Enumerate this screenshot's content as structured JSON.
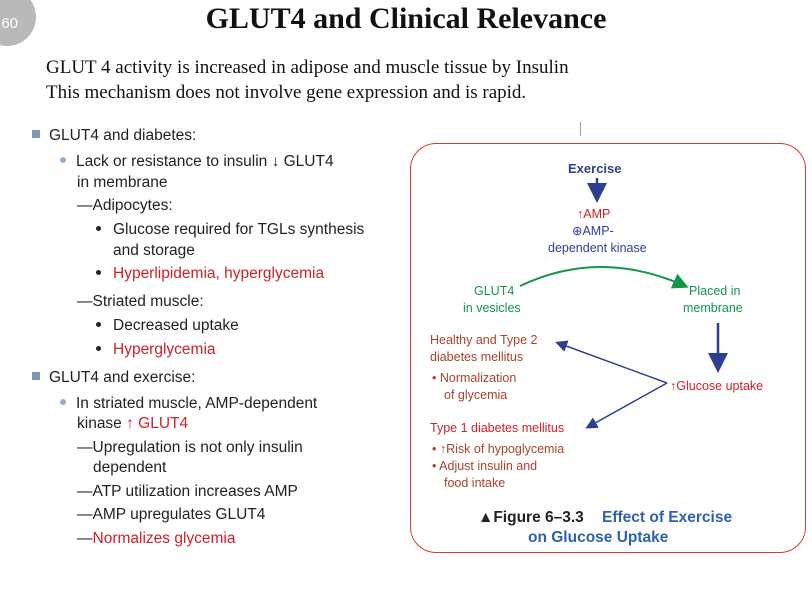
{
  "slide_number": "60",
  "title": "GLUT4 and Clinical Relevance",
  "intro": [
    "GLUT 4 activity is increased in adipose and muscle tissue by Insulin",
    "This mechanism does not involve gene expression and is rapid."
  ],
  "bullets": {
    "diabetes_heading": "GLUT4 and diabetes:",
    "lack_line1": "Lack or resistance to insulin ↓ GLUT4",
    "lack_line2": "in membrane",
    "adipocytes": "—Adipocytes:",
    "glucose_line1": "Glucose required for TGLs synthesis",
    "glucose_line2": "and storage",
    "hyperlipidemia": "Hyperlipidemia, hyperglycemia",
    "striated": "—Striated muscle:",
    "decreased": "Decreased uptake",
    "hyperglycemia": "Hyperglycemia",
    "exercise_heading": "GLUT4 and exercise:",
    "ampk_line1": "In striated muscle, AMP-dependent",
    "ampk_line2_a": "kinase",
    "ampk_line2_b": "↑ GLUT4",
    "upreg_line1": "—Upregulation is not only insulin",
    "upreg_line2": "dependent",
    "atp": "—ATP utilization increases AMP",
    "amp": "—AMP upregulates GLUT4",
    "normalizes_dash": "—",
    "normalizes": "Normalizes glycemia"
  },
  "figure": {
    "exercise": "Exercise",
    "amp": "↑AMP",
    "ampk_line1": "⊕AMP-",
    "ampk_line2": "dependent kinase",
    "glut4_line1": "GLUT4",
    "glut4_line2": "in vesicles",
    "placed_line1": "Placed in",
    "placed_line2": "membrane",
    "healthy_line1": "Healthy and Type 2",
    "healthy_line2": "diabetes mellitus",
    "norm_line1": "• Normalization",
    "norm_line2": "of glycemia",
    "glucose_uptake": "↑Glucose uptake",
    "type1": "Type 1 diabetes mellitus",
    "risk": "• ↑Risk of hypoglycemia",
    "adjust_line1": "• Adjust insulin and",
    "adjust_line2": "food intake",
    "caption_fig": "▲Figure  6–3.3",
    "caption_title_line1": "Effect of Exercise",
    "caption_title_line2": "on Glucose Uptake"
  },
  "colors": {
    "red": "#d0202a",
    "brown": "#a8432a",
    "navy": "#2f3f8f",
    "green": "#13954a",
    "caption_blue": "#2d63ad",
    "border": "#d83a34"
  }
}
